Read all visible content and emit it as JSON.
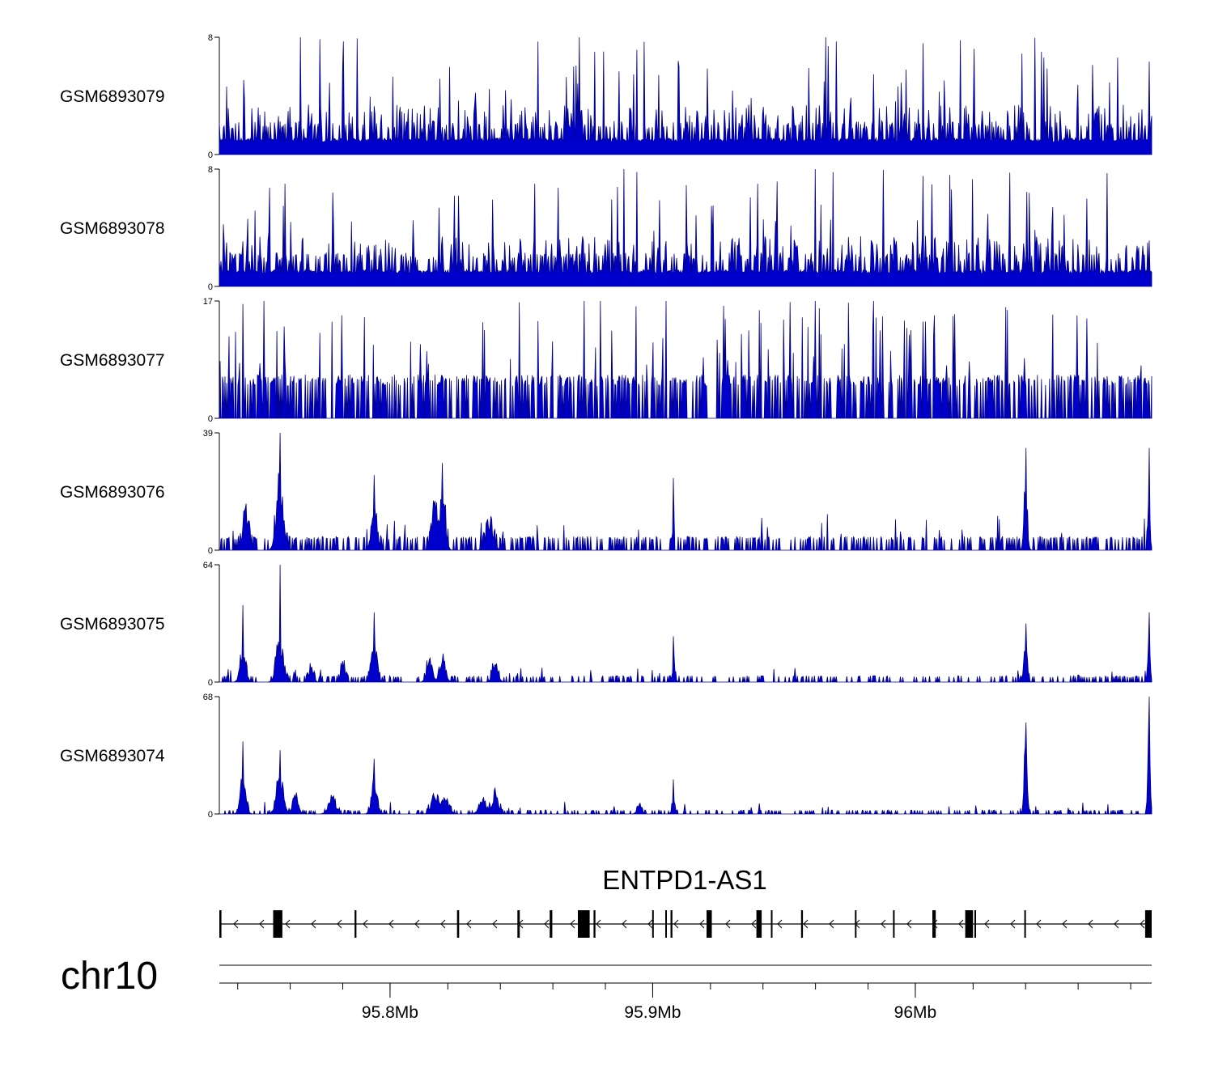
{
  "chart_data": {
    "type": "genome-coverage-tracks",
    "chromosome": "chr10",
    "region_mb": [
      95.735,
      96.09
    ],
    "fill_color": "#0000cc",
    "stroke_color": "#00008b",
    "tracks": [
      {
        "name": "GSM6893079",
        "ymin": 0,
        "ymax": 8,
        "ymin_label": "0",
        "ymax_label": "8",
        "baseline": 1,
        "levels": [
          1,
          2,
          3
        ],
        "level_prob": [
          0.55,
          0.28,
          0.12
        ],
        "spike_max": 8,
        "spike_rate": 0.05,
        "spikes": [
          [
            95.766,
            8
          ],
          [
            95.872,
            8
          ],
          [
            95.878,
            7
          ],
          [
            95.91,
            6
          ],
          [
            95.966,
            8
          ],
          [
            96.048,
            7
          ],
          [
            95.87,
            6
          ]
        ],
        "peaks": []
      },
      {
        "name": "GSM6893078",
        "ymin": 0,
        "ymax": 8,
        "ymin_label": "0",
        "ymax_label": "8",
        "baseline": 1,
        "levels": [
          1,
          2,
          3
        ],
        "level_prob": [
          0.5,
          0.3,
          0.13
        ],
        "spike_max": 8,
        "spike_rate": 0.05,
        "spikes": [
          [
            95.889,
            8
          ],
          [
            95.855,
            7
          ],
          [
            95.962,
            8
          ],
          [
            95.94,
            7
          ],
          [
            95.76,
            7
          ]
        ],
        "peaks": []
      },
      {
        "name": "GSM6893077",
        "ymin": 0,
        "ymax": 17,
        "ymin_label": "0",
        "ymax_label": "17",
        "baseline": 0,
        "levels": [
          5.5
        ],
        "level_prob": [
          0.7
        ],
        "spike_max": 17,
        "spike_rate": 0.045,
        "spikes": [
          [
            95.752,
            17
          ],
          [
            95.778,
            14
          ],
          [
            95.874,
            17
          ],
          [
            95.88,
            17
          ],
          [
            95.905,
            17
          ],
          [
            95.962,
            17
          ],
          [
            95.984,
            17
          ],
          [
            95.9,
            11
          ]
        ],
        "peaks": []
      },
      {
        "name": "GSM6893076",
        "ymin": 0,
        "ymax": 39,
        "ymin_label": "0",
        "ymax_label": "39",
        "baseline": 0,
        "levels": [
          4
        ],
        "level_prob": [
          0.5
        ],
        "spike_max": 12,
        "spike_rate": 0.02,
        "spikes": [
          [
            95.758,
            39
          ],
          [
            95.794,
            25
          ],
          [
            95.82,
            29
          ],
          [
            95.908,
            24
          ],
          [
            96.042,
            34
          ],
          [
            96.089,
            34
          ]
        ],
        "peaks": [
          [
            95.745,
            15,
            0.0015
          ],
          [
            95.758,
            28,
            0.0018
          ],
          [
            95.794,
            18,
            0.0015
          ],
          [
            95.817,
            16,
            0.0015
          ],
          [
            95.82,
            20,
            0.0015
          ],
          [
            95.838,
            9,
            0.002
          ],
          [
            96.042,
            24,
            0.0009
          ],
          [
            96.089,
            16,
            0.0006
          ]
        ]
      },
      {
        "name": "GSM6893075",
        "ymin": 0,
        "ymax": 64,
        "ymin_label": "0",
        "ymax_label": "64",
        "baseline": 0,
        "levels": [
          3
        ],
        "level_prob": [
          0.35
        ],
        "spike_max": 8,
        "spike_rate": 0.02,
        "spikes": [
          [
            95.758,
            64
          ],
          [
            95.744,
            42
          ],
          [
            95.794,
            38
          ],
          [
            95.908,
            25
          ],
          [
            96.042,
            32
          ],
          [
            96.089,
            38
          ]
        ],
        "peaks": [
          [
            95.744,
            22,
            0.0015
          ],
          [
            95.758,
            28,
            0.0018
          ],
          [
            95.77,
            10,
            0.0012
          ],
          [
            95.782,
            12,
            0.0012
          ],
          [
            95.794,
            24,
            0.0015
          ],
          [
            95.815,
            14,
            0.0015
          ],
          [
            95.82,
            16,
            0.0015
          ],
          [
            95.84,
            12,
            0.0015
          ],
          [
            95.908,
            12,
            0.0008
          ],
          [
            96.042,
            26,
            0.0009
          ],
          [
            96.089,
            32,
            0.0006
          ]
        ]
      },
      {
        "name": "GSM6893074",
        "ymin": 0,
        "ymax": 68,
        "ymin_label": "0",
        "ymax_label": "68",
        "baseline": 0,
        "levels": [
          2
        ],
        "level_prob": [
          0.3
        ],
        "spike_max": 7,
        "spike_rate": 0.02,
        "spikes": [
          [
            95.744,
            42
          ],
          [
            95.758,
            37
          ],
          [
            95.794,
            32
          ],
          [
            95.908,
            20
          ],
          [
            96.042,
            53
          ],
          [
            96.089,
            68
          ]
        ],
        "peaks": [
          [
            95.744,
            24,
            0.0015
          ],
          [
            95.758,
            28,
            0.0018
          ],
          [
            95.764,
            14,
            0.0015
          ],
          [
            95.778,
            10,
            0.002
          ],
          [
            95.794,
            22,
            0.0015
          ],
          [
            95.817,
            13,
            0.0018
          ],
          [
            95.821,
            10,
            0.002
          ],
          [
            95.835,
            9,
            0.0018
          ],
          [
            95.84,
            14,
            0.0015
          ],
          [
            95.895,
            8,
            0.0012
          ],
          [
            95.908,
            12,
            0.0008
          ],
          [
            96.042,
            52,
            0.0008
          ],
          [
            96.089,
            66,
            0.0006
          ]
        ]
      }
    ],
    "gene": {
      "name": "ENTPD1-AS1",
      "strand": "-",
      "exons_mb": [
        [
          95.735,
          95.7358
        ],
        [
          95.7555,
          95.759
        ],
        [
          95.7865,
          95.7872
        ],
        [
          95.8255,
          95.8263
        ],
        [
          95.8485,
          95.8494
        ],
        [
          95.8608,
          95.8618
        ],
        [
          95.8715,
          95.876
        ],
        [
          95.8775,
          95.8782
        ],
        [
          95.8998,
          95.9003
        ],
        [
          95.9048,
          95.9052
        ],
        [
          95.9068,
          95.9075
        ],
        [
          95.9205,
          95.9225
        ],
        [
          95.9395,
          95.9415
        ],
        [
          95.945,
          95.9455
        ],
        [
          95.9565,
          95.9572
        ],
        [
          95.977,
          95.9775
        ],
        [
          95.9915,
          95.9921
        ],
        [
          96.0065,
          96.0078
        ],
        [
          96.019,
          96.022
        ],
        [
          96.0225,
          96.023
        ],
        [
          96.0415,
          96.0421
        ],
        [
          96.0875,
          96.09
        ]
      ]
    },
    "x_axis": {
      "ticks_mb": [
        95.8,
        95.9,
        96.0
      ],
      "tick_labels": [
        "95.8Mb",
        "95.9Mb",
        "96Mb"
      ],
      "minor_ticks_mb": [
        95.742,
        95.762,
        95.782,
        95.8,
        95.822,
        95.842,
        95.862,
        95.882,
        95.9,
        95.922,
        95.942,
        95.962,
        95.982,
        96.0,
        96.022,
        96.042,
        96.062,
        96.082
      ]
    }
  }
}
